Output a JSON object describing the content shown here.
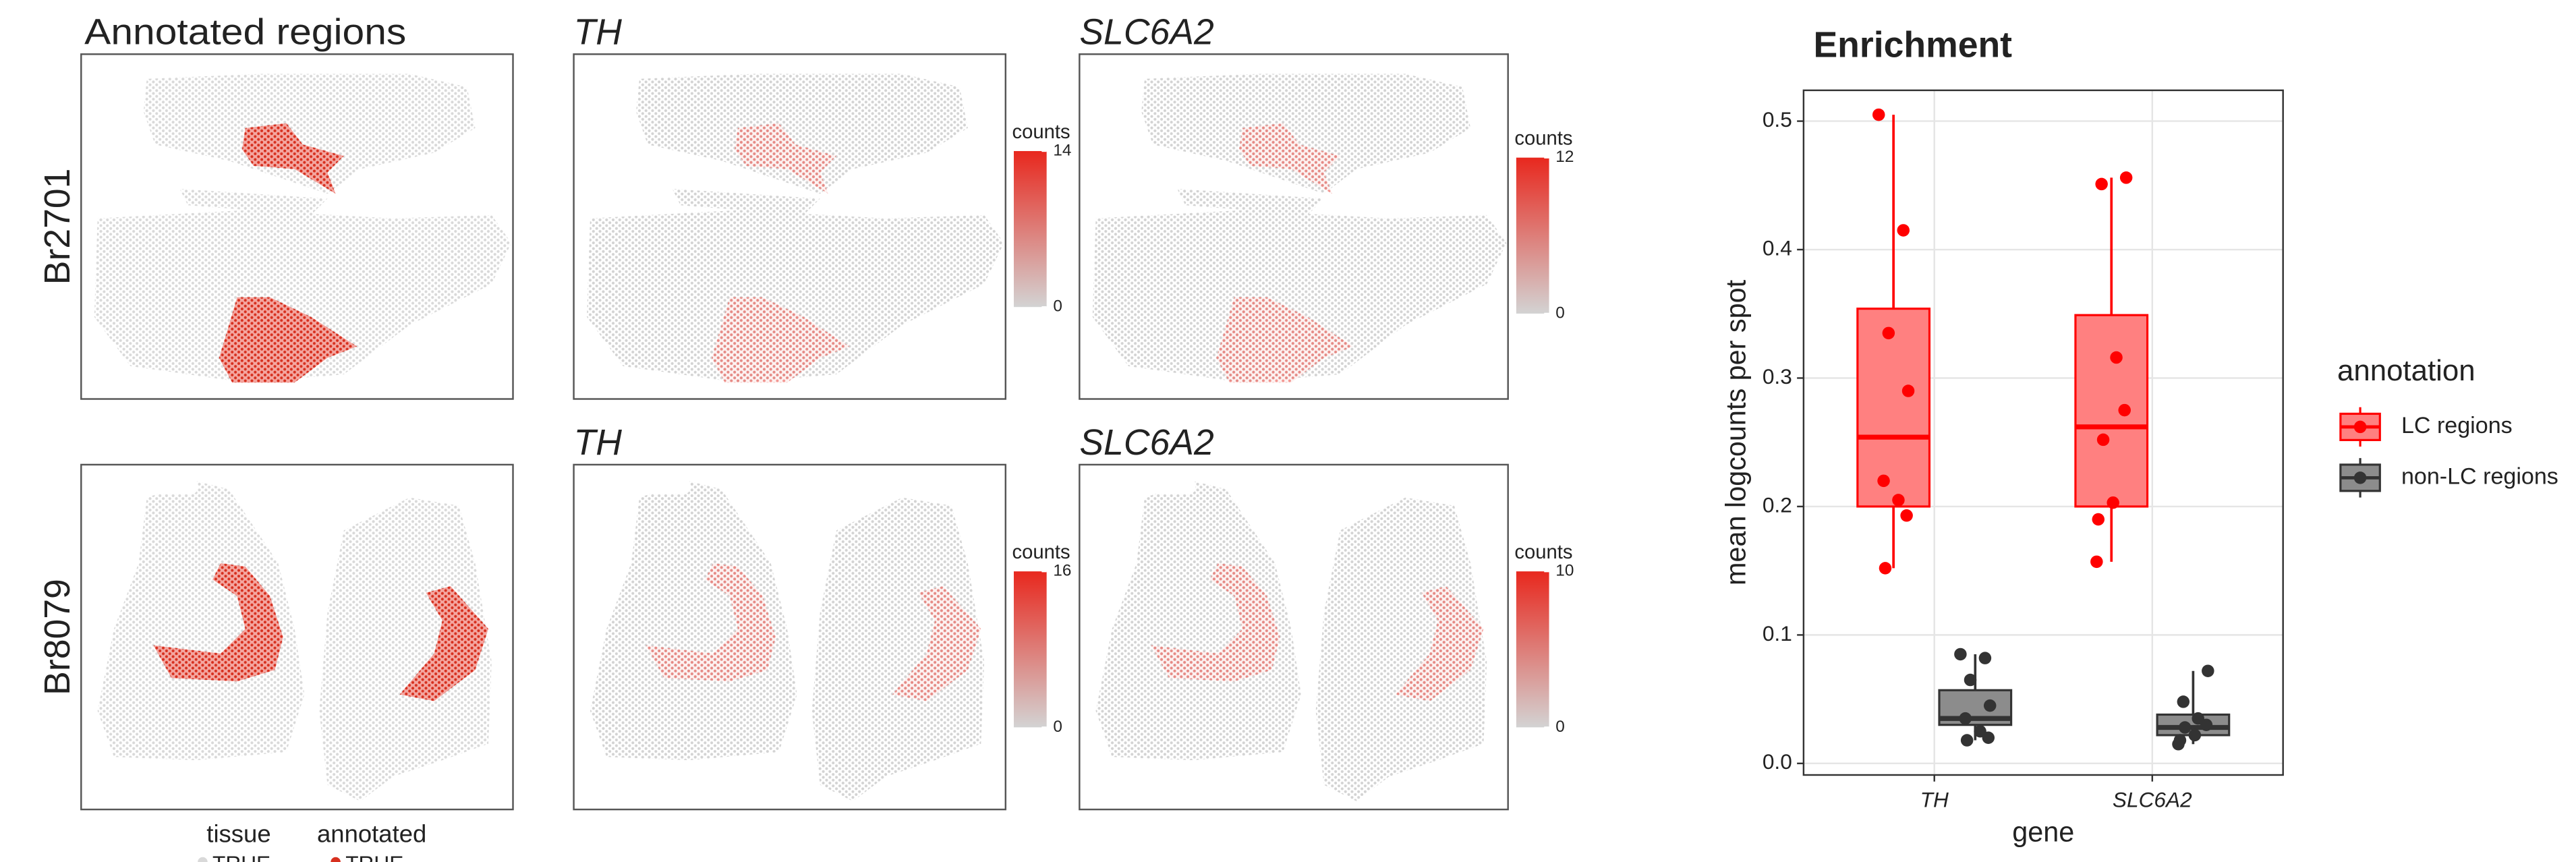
{
  "figure": {
    "samples": [
      "Br2701",
      "Br8079"
    ],
    "legend": {
      "titles": [
        "tissue",
        "annotated"
      ],
      "labels": [
        "TRUE",
        "TRUE"
      ]
    }
  },
  "chart_data": [
    {
      "type": "spatial",
      "title": "Annotated regions",
      "colors": {
        "tissue": "#d9d9d9",
        "annotated": "#d7301f"
      }
    },
    {
      "type": "spatial",
      "title": "TH",
      "colorbar": {
        "title": "counts",
        "clim": [
          0,
          14
        ],
        "ticks": [
          0,
          14
        ],
        "colors": [
          "#d3d3d3",
          "#e8281e"
        ]
      }
    },
    {
      "type": "spatial",
      "title": "SLC6A2",
      "colorbar": {
        "title": "counts",
        "clim": [
          0,
          12
        ],
        "ticks": [
          0,
          12
        ],
        "colors": [
          "#d3d3d3",
          "#e8281e"
        ]
      }
    },
    {
      "type": "spatial",
      "colors": {
        "tissue": "#d9d9d9",
        "annotated": "#d7301f"
      }
    },
    {
      "type": "spatial",
      "title": "TH",
      "colorbar": {
        "title": "counts",
        "clim": [
          0,
          16
        ],
        "ticks": [
          0,
          16
        ],
        "colors": [
          "#d3d3d3",
          "#e8281e"
        ]
      }
    },
    {
      "type": "spatial",
      "title": "SLC6A2",
      "colorbar": {
        "title": "counts",
        "clim": [
          0,
          10
        ],
        "ticks": [
          0,
          10
        ],
        "colors": [
          "#d3d3d3",
          "#e8281e"
        ]
      }
    },
    {
      "type": "box",
      "title": "Enrichment",
      "x_label": "gene",
      "y_label": "mean logcounts per spot",
      "categories": [
        "TH",
        "SLC6A2"
      ],
      "legend_title": "annotation",
      "ylim": [
        -0.009,
        0.524
      ],
      "yticks": [
        {
          "value": 0,
          "label": "0.0"
        },
        0.1,
        0.2,
        0.3,
        0.4,
        0.5
      ],
      "grid": true,
      "series": [
        {
          "name": "LC regions",
          "color": "#ff0000",
          "fill": "#ff8080",
          "boxes": [
            {
              "low": 0.152,
              "q1": 0.2,
              "median": 0.254,
              "q3": 0.354,
              "high": 0.505,
              "points": [
                0.505,
                0.415,
                0.335,
                0.29,
                0.22,
                0.205,
                0.193,
                0.152
              ]
            },
            {
              "low": 0.157,
              "q1": 0.2,
              "median": 0.262,
              "q3": 0.349,
              "high": 0.456,
              "points": [
                0.456,
                0.451,
                0.316,
                0.275,
                0.252,
                0.203,
                0.19,
                0.157
              ]
            }
          ]
        },
        {
          "name": "non-LC regions",
          "color": "#333333",
          "fill": "#8c8c8c",
          "boxes": [
            {
              "low": 0.018,
              "q1": 0.03,
              "median": 0.035,
              "q3": 0.057,
              "high": 0.085,
              "points": [
                0.085,
                0.082,
                0.065,
                0.045,
                0.035,
                0.025,
                0.02,
                0.018
              ]
            },
            {
              "low": 0.015,
              "q1": 0.022,
              "median": 0.028,
              "q3": 0.038,
              "high": 0.072,
              "points": [
                0.072,
                0.048,
                0.035,
                0.03,
                0.028,
                0.022,
                0.018,
                0.015
              ]
            }
          ]
        }
      ]
    }
  ]
}
